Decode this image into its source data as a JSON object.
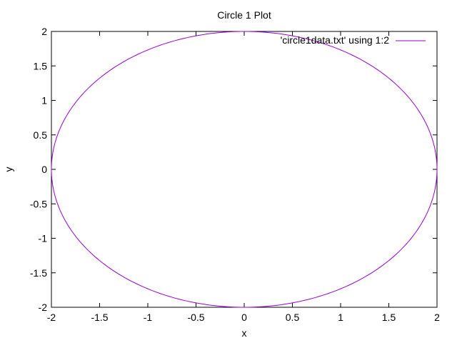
{
  "chart_data": {
    "type": "line",
    "title": "Circle 1 Plot",
    "xlabel": "x",
    "ylabel": "y",
    "xlim": [
      -2,
      2
    ],
    "ylim": [
      -2,
      2
    ],
    "xticks": [
      -2,
      -1.5,
      -1,
      -0.5,
      0,
      0.5,
      1,
      1.5,
      2
    ],
    "xtick_labels": [
      "-2",
      "-1.5",
      "-1",
      "-0.5",
      "0",
      "0.5",
      "1",
      "1.5",
      "2"
    ],
    "yticks": [
      -2,
      -1.5,
      -1,
      -0.5,
      0,
      0.5,
      1,
      1.5,
      2
    ],
    "ytick_labels": [
      "-2",
      "-1.5",
      "-1",
      "-0.5",
      "0",
      "0.5",
      "1",
      "1.5",
      "2"
    ],
    "grid": false,
    "legend_position": "top-right",
    "series": [
      {
        "name": "'circle1data.txt' using 1:2",
        "color": "#9400d3",
        "shape": "circle",
        "center": [
          0,
          0
        ],
        "radius": 2
      }
    ]
  }
}
